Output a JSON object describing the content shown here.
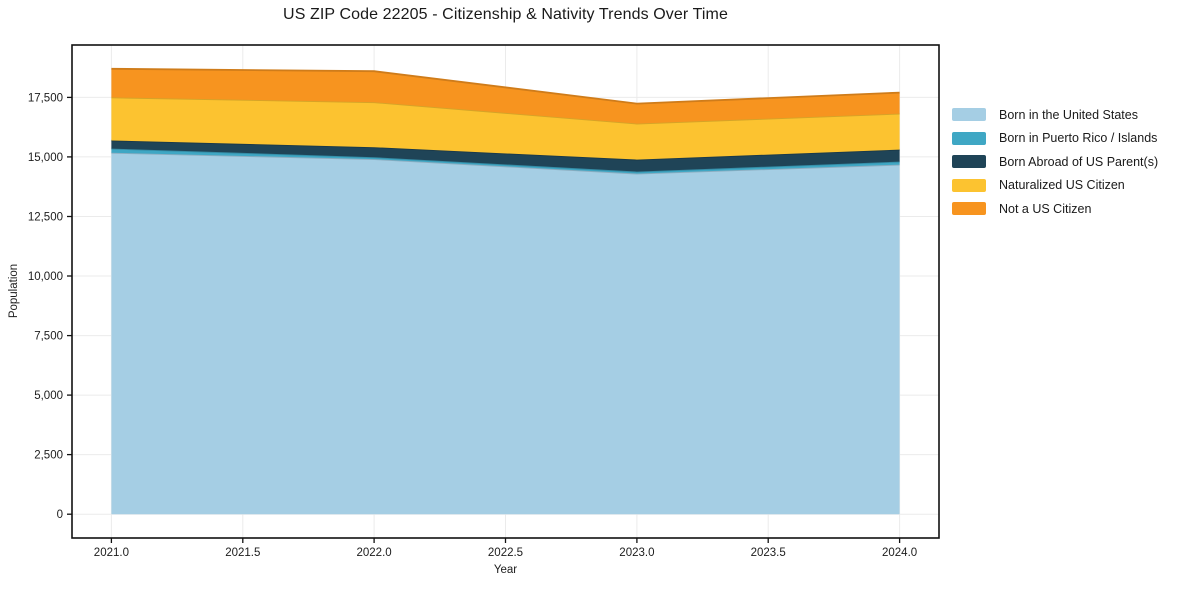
{
  "title": "US ZIP Code 22205 - Citizenship & Nativity Trends Over Time",
  "chart_data": {
    "type": "area",
    "stacked": true,
    "title": "US ZIP Code 22205 - Citizenship & Nativity Trends Over Time",
    "xlabel": "Year",
    "ylabel": "Population",
    "x": [
      2021,
      2022,
      2023,
      2024
    ],
    "series": [
      {
        "name": "Born in the United States",
        "color": "#a5cee4",
        "values": [
          15180,
          14910,
          14300,
          14680
        ]
      },
      {
        "name": "Born in Puerto Rico / Islands",
        "color": "#3fa7c4",
        "values": [
          170,
          80,
          85,
          125
        ]
      },
      {
        "name": "Born Abroad of US Parent(s)",
        "color": "#1f4457",
        "values": [
          340,
          420,
          505,
          505
        ]
      },
      {
        "name": "Naturalized US Citizen",
        "color": "#fcc330",
        "values": [
          1810,
          1890,
          1510,
          1510
        ]
      },
      {
        "name": "Not a US Citizen",
        "color": "#f7941f",
        "values": [
          1200,
          1300,
          840,
          880
        ]
      }
    ],
    "stacked_totals": [
      18700,
      18600,
      17240,
      17700
    ],
    "xlim": [
      2020.85,
      2024.15
    ],
    "ylim": [
      -1000,
      19700
    ],
    "xticks": [
      2021.0,
      2021.5,
      2022.0,
      2022.5,
      2023.0,
      2023.5,
      2024.0
    ],
    "xtick_labels": [
      "2021.0",
      "2021.5",
      "2022.0",
      "2022.5",
      "2023.0",
      "2023.5",
      "2024.0"
    ],
    "yticks": [
      0,
      2500,
      5000,
      7500,
      10000,
      12500,
      15000,
      17500
    ],
    "ytick_labels": [
      "0",
      "2,500",
      "5,000",
      "7,500",
      "10,000",
      "12,500",
      "15,000",
      "17,500"
    ],
    "grid": true,
    "grid_color": "#ebebeb",
    "axis_color": "#111111",
    "text_color": "#1c1c1c",
    "legend_position": "right"
  }
}
